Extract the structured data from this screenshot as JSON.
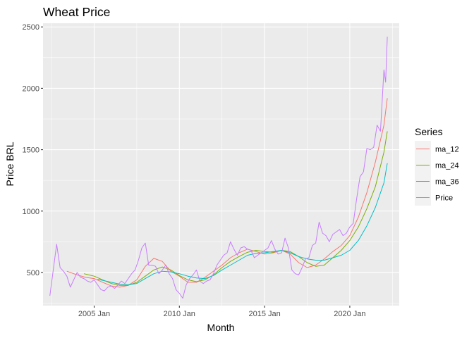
{
  "chart_data": {
    "type": "line",
    "title": "Wheat Price",
    "xlabel": "Month",
    "ylabel": "Price BRL",
    "xlim": [
      2002.0,
      2022.9
    ],
    "ylim": [
      230,
      2530
    ],
    "x_ticks": [
      {
        "value": 2005.0,
        "label": "2005 Jan"
      },
      {
        "value": 2010.0,
        "label": "2010 Jan"
      },
      {
        "value": 2015.0,
        "label": "2015 Jan"
      },
      {
        "value": 2020.0,
        "label": "2020 Jan"
      }
    ],
    "y_ticks": [
      500,
      1000,
      1500,
      2000,
      2500
    ],
    "grid": true,
    "legend": {
      "title": "Series",
      "placement": "right"
    },
    "series": [
      {
        "name": "ma_12",
        "color": "#F8766D",
        "x": [
          2003.4,
          2004.0,
          2004.5,
          2005.0,
          2005.5,
          2006.0,
          2006.5,
          2007.0,
          2007.5,
          2008.0,
          2008.5,
          2009.0,
          2009.5,
          2010.0,
          2010.5,
          2011.0,
          2011.5,
          2012.0,
          2012.5,
          2013.0,
          2013.5,
          2014.0,
          2014.5,
          2015.0,
          2015.5,
          2016.0,
          2016.5,
          2017.0,
          2017.5,
          2018.0,
          2018.5,
          2019.0,
          2019.5,
          2020.0,
          2020.5,
          2021.0,
          2021.5,
          2022.0,
          2022.2
        ],
        "y": [
          510,
          480,
          460,
          450,
          420,
          390,
          380,
          395,
          440,
          550,
          615,
          590,
          510,
          470,
          420,
          420,
          460,
          510,
          560,
          620,
          660,
          690,
          670,
          650,
          660,
          680,
          650,
          580,
          540,
          560,
          610,
          670,
          720,
          800,
          950,
          1150,
          1400,
          1700,
          1920
        ]
      },
      {
        "name": "ma_24",
        "color": "#7CAE00",
        "x": [
          2004.4,
          2005.0,
          2005.5,
          2006.0,
          2006.5,
          2007.0,
          2007.5,
          2008.0,
          2008.5,
          2009.0,
          2009.5,
          2010.0,
          2010.5,
          2011.0,
          2011.5,
          2012.0,
          2012.5,
          2013.0,
          2013.5,
          2014.0,
          2014.5,
          2015.0,
          2015.5,
          2016.0,
          2016.5,
          2017.0,
          2017.5,
          2018.0,
          2018.5,
          2019.0,
          2019.5,
          2020.0,
          2020.5,
          2021.0,
          2021.5,
          2022.0,
          2022.2
        ],
        "y": [
          490,
          470,
          440,
          410,
          395,
          395,
          420,
          470,
          520,
          545,
          520,
          475,
          440,
          425,
          440,
          480,
          540,
          590,
          630,
          665,
          680,
          670,
          665,
          680,
          670,
          630,
          580,
          550,
          560,
          620,
          680,
          760,
          870,
          1020,
          1200,
          1480,
          1650
        ]
      },
      {
        "name": "ma_36",
        "color": "#00BFC4",
        "x": [
          2005.2,
          2006.0,
          2006.5,
          2007.0,
          2007.5,
          2008.0,
          2008.5,
          2009.0,
          2009.5,
          2010.0,
          2010.5,
          2011.0,
          2011.5,
          2012.0,
          2012.5,
          2013.0,
          2013.5,
          2014.0,
          2014.5,
          2015.0,
          2015.5,
          2016.0,
          2016.5,
          2017.0,
          2017.5,
          2018.0,
          2018.5,
          2019.0,
          2019.5,
          2020.0,
          2020.5,
          2021.0,
          2021.5,
          2022.0,
          2022.2
        ],
        "y": [
          445,
          420,
          405,
          400,
          410,
          450,
          490,
          510,
          505,
          490,
          470,
          455,
          450,
          475,
          520,
          560,
          600,
          640,
          655,
          660,
          670,
          680,
          660,
          630,
          610,
          600,
          600,
          620,
          640,
          680,
          760,
          880,
          1030,
          1230,
          1390
        ]
      },
      {
        "name": "Price",
        "color": "#C77CFF",
        "x": [
          2002.4,
          2002.6,
          2002.8,
          2003.0,
          2003.2,
          2003.4,
          2003.6,
          2003.8,
          2004.0,
          2004.2,
          2004.4,
          2004.6,
          2004.8,
          2005.0,
          2005.2,
          2005.4,
          2005.6,
          2005.8,
          2006.0,
          2006.2,
          2006.4,
          2006.6,
          2006.8,
          2007.0,
          2007.2,
          2007.4,
          2007.6,
          2007.8,
          2008.0,
          2008.2,
          2008.4,
          2008.6,
          2008.8,
          2009.0,
          2009.2,
          2009.4,
          2009.6,
          2009.8,
          2010.0,
          2010.2,
          2010.4,
          2010.6,
          2010.8,
          2011.0,
          2011.2,
          2011.4,
          2011.6,
          2011.8,
          2012.0,
          2012.2,
          2012.4,
          2012.6,
          2012.8,
          2013.0,
          2013.2,
          2013.4,
          2013.6,
          2013.8,
          2014.0,
          2014.2,
          2014.4,
          2014.6,
          2014.8,
          2015.0,
          2015.2,
          2015.4,
          2015.6,
          2015.8,
          2016.0,
          2016.2,
          2016.4,
          2016.6,
          2016.8,
          2017.0,
          2017.2,
          2017.4,
          2017.6,
          2017.8,
          2018.0,
          2018.2,
          2018.4,
          2018.6,
          2018.8,
          2019.0,
          2019.2,
          2019.4,
          2019.6,
          2019.8,
          2020.0,
          2020.2,
          2020.4,
          2020.6,
          2020.8,
          2021.0,
          2021.2,
          2021.4,
          2021.6,
          2021.8,
          2022.0,
          2022.1,
          2022.2
        ],
        "y": [
          310,
          520,
          730,
          540,
          510,
          470,
          380,
          440,
          500,
          460,
          450,
          430,
          420,
          440,
          400,
          360,
          350,
          380,
          390,
          370,
          400,
          430,
          410,
          450,
          490,
          520,
          600,
          700,
          740,
          560,
          560,
          550,
          490,
          520,
          560,
          490,
          450,
          360,
          330,
          290,
          400,
          450,
          480,
          520,
          430,
          410,
          430,
          440,
          490,
          560,
          600,
          640,
          660,
          750,
          690,
          640,
          700,
          710,
          690,
          680,
          620,
          640,
          660,
          680,
          700,
          760,
          690,
          650,
          660,
          780,
          700,
          520,
          490,
          480,
          540,
          610,
          620,
          720,
          740,
          910,
          820,
          800,
          750,
          810,
          830,
          850,
          800,
          820,
          870,
          900,
          1100,
          1280,
          1320,
          1510,
          1500,
          1520,
          1700,
          1650,
          2150,
          2050,
          2420
        ]
      }
    ]
  }
}
